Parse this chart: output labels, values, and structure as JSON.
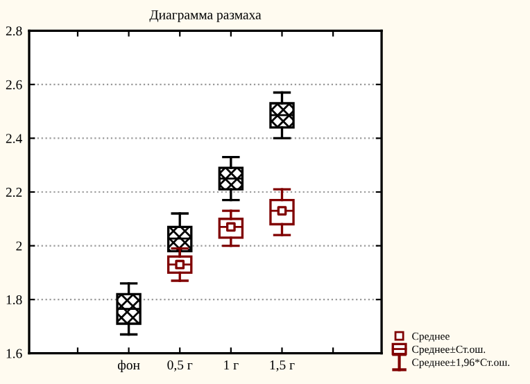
{
  "chart_data": {
    "type": "box",
    "title": "Диаграмма размаха",
    "categories": [
      null,
      "фон",
      "0,5 г",
      "1 г",
      "1,5 г",
      null
    ],
    "series": [
      {
        "color": "#000000",
        "boxes": [
          null,
          {
            "low": 1.67,
            "q1": 1.71,
            "median": 1.765,
            "q3": 1.82,
            "high": 1.86
          },
          {
            "low": 1.94,
            "q1": 1.98,
            "median": 2.027,
            "q3": 2.07,
            "high": 2.12
          },
          {
            "low": 2.17,
            "q1": 2.21,
            "median": 2.25,
            "q3": 2.29,
            "high": 2.33
          },
          {
            "low": 2.4,
            "q1": 2.44,
            "median": 2.486,
            "q3": 2.53,
            "high": 2.57
          },
          null
        ]
      },
      {
        "name": "Среднее±Ст.ош.",
        "color": "#800000",
        "boxes": [
          null,
          null,
          {
            "low": 1.87,
            "q1": 1.9,
            "median": 1.93,
            "q3": 1.96,
            "high": 1.99
          },
          {
            "low": 2.0,
            "q1": 2.03,
            "median": 2.07,
            "q3": 2.1,
            "high": 2.13
          },
          {
            "low": 2.04,
            "q1": 2.08,
            "median": 2.13,
            "q3": 2.17,
            "high": 2.21
          },
          null
        ]
      },
      {
        "type": "scatter",
        "name": "Среднее",
        "color": "#800000",
        "marker": "square",
        "values": [
          null,
          null,
          1.93,
          2.07,
          2.13,
          null
        ]
      }
    ],
    "annotations": [
      "Среднее±1,96*Ст.ош."
    ],
    "ylim": [
      1.6,
      2.8
    ],
    "yticks": [
      1.6,
      1.8,
      2,
      2.2,
      2.4,
      2.6,
      2.8
    ],
    "grid": "y",
    "legend": "bottom right"
  }
}
